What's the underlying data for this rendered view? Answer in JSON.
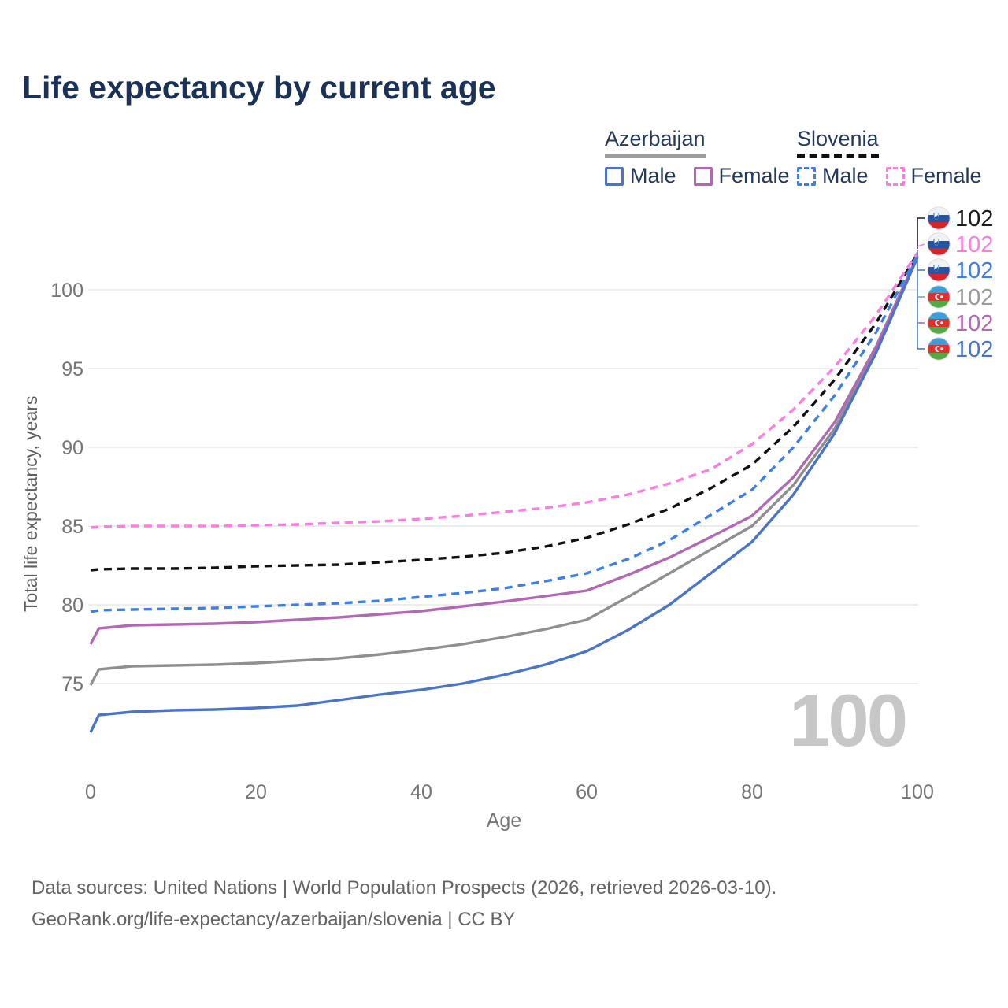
{
  "header": {
    "title": "Life expectancy by current age"
  },
  "legend": {
    "groups": [
      {
        "country": "Azerbaijan",
        "style": "solid",
        "underline_color": "#9e9e9e",
        "items": [
          {
            "label": "Male",
            "series": "az-male"
          },
          {
            "label": "Female",
            "series": "az-female"
          }
        ]
      },
      {
        "country": "Slovenia",
        "style": "dashed",
        "underline_color": "#111111",
        "items": [
          {
            "label": "Male",
            "series": "si-male"
          },
          {
            "label": "Female",
            "series": "si-female"
          }
        ]
      }
    ]
  },
  "chart_data": {
    "type": "line",
    "title": "Life expectancy by current age",
    "xlabel": "Age",
    "ylabel": "Total life expectancy, years",
    "x_ticks": [
      0,
      20,
      40,
      60,
      80,
      100
    ],
    "y_ticks": [
      75,
      80,
      85,
      90,
      95,
      100
    ],
    "xlim": [
      0,
      100
    ],
    "ylim": [
      71.5,
      103
    ],
    "grid": "horizontal",
    "legend_position": "top-right",
    "watermark": "100",
    "ages": [
      0,
      1,
      5,
      10,
      15,
      20,
      25,
      30,
      35,
      40,
      45,
      50,
      55,
      60,
      65,
      70,
      75,
      80,
      85,
      90,
      95,
      100
    ],
    "series": [
      {
        "id": "az-total",
        "country": "Azerbaijan",
        "sex": "Total",
        "color": "#8f8f8f",
        "dash": false,
        "values": [
          74.9,
          75.9,
          76.1,
          76.15,
          76.2,
          76.3,
          76.45,
          76.6,
          76.85,
          77.15,
          77.5,
          77.95,
          78.45,
          79.05,
          80.5,
          82.0,
          83.5,
          85.0,
          87.6,
          91.2,
          96.2,
          102.1
        ]
      },
      {
        "id": "az-female",
        "country": "Azerbaijan",
        "sex": "Female",
        "color": "#b069b2",
        "dash": false,
        "values": [
          77.5,
          78.5,
          78.7,
          78.75,
          78.8,
          78.9,
          79.05,
          79.2,
          79.4,
          79.6,
          79.9,
          80.2,
          80.55,
          80.9,
          81.9,
          83.0,
          84.3,
          85.65,
          88.1,
          91.6,
          96.4,
          102.15
        ]
      },
      {
        "id": "az-male",
        "country": "Azerbaijan",
        "sex": "Male",
        "color": "#4a74c9",
        "dash": false,
        "values": [
          71.9,
          73.0,
          73.2,
          73.3,
          73.35,
          73.45,
          73.6,
          73.95,
          74.3,
          74.6,
          75.0,
          75.55,
          76.2,
          77.05,
          78.4,
          80.0,
          82.0,
          84.0,
          87.0,
          90.9,
          96.0,
          102.05
        ]
      },
      {
        "id": "si-total",
        "country": "Slovenia",
        "sex": "Total",
        "color": "#111111",
        "dash": true,
        "values": [
          82.2,
          82.25,
          82.3,
          82.3,
          82.35,
          82.45,
          82.5,
          82.55,
          82.7,
          82.85,
          83.05,
          83.3,
          83.7,
          84.25,
          85.1,
          86.1,
          87.4,
          88.9,
          91.3,
          94.3,
          97.9,
          102.3
        ]
      },
      {
        "id": "si-male",
        "country": "Slovenia",
        "sex": "Male",
        "color": "#3d7fe8",
        "dash": true,
        "values": [
          79.55,
          79.65,
          79.7,
          79.75,
          79.8,
          79.9,
          80.0,
          80.1,
          80.25,
          80.5,
          80.75,
          81.05,
          81.5,
          82.0,
          82.9,
          84.1,
          85.7,
          87.3,
          90.0,
          93.3,
          97.3,
          102.2
        ]
      },
      {
        "id": "si-female",
        "country": "Slovenia",
        "sex": "Female",
        "color": "#ff7ce0",
        "dash": true,
        "values": [
          84.9,
          84.95,
          85.0,
          85.0,
          85.0,
          85.05,
          85.1,
          85.2,
          85.3,
          85.45,
          85.65,
          85.9,
          86.15,
          86.5,
          87.0,
          87.7,
          88.6,
          90.2,
          92.4,
          95.1,
          98.4,
          102.35
        ]
      }
    ],
    "end_labels": [
      {
        "flag": "slovenia",
        "value": "102",
        "color": "#1a1a1a",
        "series": "si-total"
      },
      {
        "flag": "slovenia",
        "value": "102",
        "color": "#ff7ce0",
        "series": "si-female"
      },
      {
        "flag": "slovenia",
        "value": "102",
        "color": "#3d7fe8",
        "series": "si-male"
      },
      {
        "flag": "azerbaijan",
        "value": "102",
        "color": "#9a9a9a",
        "series": "az-total"
      },
      {
        "flag": "azerbaijan",
        "value": "102",
        "color": "#b069b2",
        "series": "az-female"
      },
      {
        "flag": "azerbaijan",
        "value": "102",
        "color": "#4a74c9",
        "series": "az-male"
      }
    ]
  },
  "footer": {
    "line1": "Data sources: United Nations | World Population Prospects (2026, retrieved 2026-03-10).",
    "line2": "GeoRank.org/life-expectancy/azerbaijan/slovenia | CC BY"
  }
}
